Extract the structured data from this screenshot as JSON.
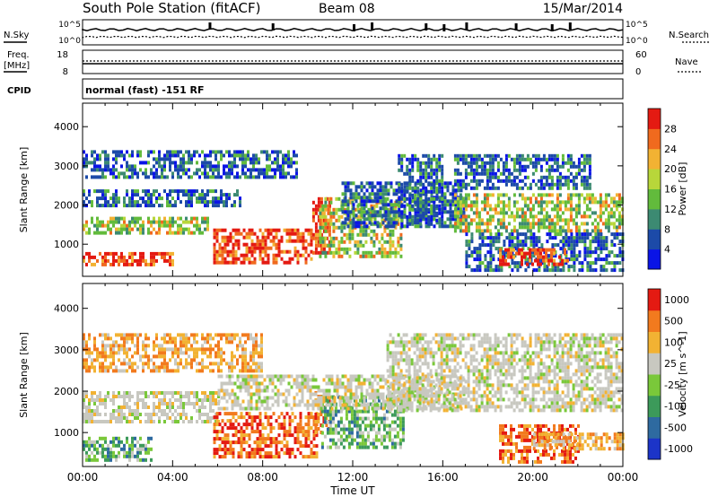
{
  "header": {
    "title": "South Pole Station (fitACF)",
    "beam": "Beam 08",
    "date": "15/Mar/2014"
  },
  "top_panels": {
    "nsky_label": "N.Sky",
    "nsky_ticks": [
      "10^5",
      "10^0"
    ],
    "nsearch_label": "N.Search",
    "nsearch_ticks": [
      "10^5",
      "10^0"
    ],
    "freq_label_1": "Freq.",
    "freq_label_2": "[MHz]",
    "freq_ticks": [
      "18",
      "8"
    ],
    "nave_label": "Nave",
    "nave_ticks": [
      "60",
      "0"
    ],
    "cpid_label": "CPID",
    "cpid_text": "normal (fast) -151 RF"
  },
  "chart_data": [
    {
      "type": "heatmap",
      "name": "power",
      "ylabel": "Slant Range [km]",
      "y_ticks": [
        "1000",
        "2000",
        "3000",
        "4000"
      ],
      "ylim": [
        180,
        4600
      ],
      "xlim": [
        "00:00",
        "24:00"
      ],
      "colorbar": {
        "label": "Power [dB]",
        "ticks": [
          "4",
          "8",
          "12",
          "16",
          "20",
          "24",
          "28"
        ],
        "colors": [
          "#0a14e6",
          "#1c4aa8",
          "#3c8a72",
          "#62bb3c",
          "#b8d63a",
          "#f2b233",
          "#f06a1e",
          "#e41a12"
        ]
      },
      "bands": [
        {
          "x": [
            0,
            5.6
          ],
          "y": [
            1300,
            1700
          ],
          "level": "mid"
        },
        {
          "x": [
            0,
            4.0
          ],
          "y": [
            500,
            800
          ],
          "level": "high"
        },
        {
          "x": [
            0,
            7.0
          ],
          "y": [
            2000,
            2400
          ],
          "level": "low"
        },
        {
          "x": [
            0,
            9.5
          ],
          "y": [
            2700,
            3400
          ],
          "level": "low"
        },
        {
          "x": [
            5.8,
            10.2
          ],
          "y": [
            500,
            1400
          ],
          "level": "high"
        },
        {
          "x": [
            10.2,
            11.0
          ],
          "y": [
            800,
            2200
          ],
          "level": "high"
        },
        {
          "x": [
            10.5,
            14.2
          ],
          "y": [
            700,
            2200
          ],
          "level": "mid"
        },
        {
          "x": [
            11.5,
            17.0
          ],
          "y": [
            1500,
            2600
          ],
          "level": "low"
        },
        {
          "x": [
            14.0,
            16.0
          ],
          "y": [
            1500,
            3300
          ],
          "level": "low"
        },
        {
          "x": [
            16.5,
            24.0
          ],
          "y": [
            1300,
            2300
          ],
          "level": "mid"
        },
        {
          "x": [
            16.5,
            22.5
          ],
          "y": [
            2400,
            3300
          ],
          "level": "low"
        },
        {
          "x": [
            17.0,
            24.0
          ],
          "y": [
            300,
            1300
          ],
          "level": "low"
        },
        {
          "x": [
            18.5,
            21.5
          ],
          "y": [
            500,
            900
          ],
          "level": "high"
        }
      ]
    },
    {
      "type": "heatmap",
      "name": "velocity",
      "ylabel": "Slant Range [km]",
      "xlabel": "Time UT",
      "x_ticks": [
        "00:00",
        "04:00",
        "08:00",
        "12:00",
        "16:00",
        "20:00",
        "00:00"
      ],
      "y_ticks": [
        "1000",
        "2000",
        "3000",
        "4000"
      ],
      "ylim": [
        180,
        4600
      ],
      "xlim": [
        "00:00",
        "24:00"
      ],
      "colorbar": {
        "label": "Velocity [m s^-1]",
        "ticks": [
          "1000",
          "500",
          "100",
          "25",
          "-25",
          "-100",
          "-500",
          "-1000"
        ],
        "colors": [
          "#1c34c8",
          "#2e6aa0",
          "#3c9a5a",
          "#7ac83a",
          "#c8c8c0",
          "#f2b233",
          "#f27a1e",
          "#e41a12"
        ]
      },
      "bands": [
        {
          "x": [
            0,
            6.0
          ],
          "y": [
            1300,
            2000
          ],
          "level": "gray"
        },
        {
          "x": [
            0,
            3.0
          ],
          "y": [
            300,
            900
          ],
          "level": "green"
        },
        {
          "x": [
            0,
            8.0
          ],
          "y": [
            2500,
            3400
          ],
          "level": "orange"
        },
        {
          "x": [
            5.8,
            10.4
          ],
          "y": [
            400,
            1500
          ],
          "level": "red"
        },
        {
          "x": [
            10.3,
            11.0
          ],
          "y": [
            1000,
            2000
          ],
          "level": "red"
        },
        {
          "x": [
            10.6,
            14.3
          ],
          "y": [
            600,
            1900
          ],
          "level": "green"
        },
        {
          "x": [
            6.0,
            17.0
          ],
          "y": [
            1600,
            2400
          ],
          "level": "gray"
        },
        {
          "x": [
            13.5,
            24.0
          ],
          "y": [
            1500,
            3400
          ],
          "level": "gray"
        },
        {
          "x": [
            18.5,
            22.0
          ],
          "y": [
            300,
            1200
          ],
          "level": "red"
        },
        {
          "x": [
            20.0,
            24.0
          ],
          "y": [
            600,
            1000
          ],
          "level": "orange"
        }
      ]
    }
  ]
}
